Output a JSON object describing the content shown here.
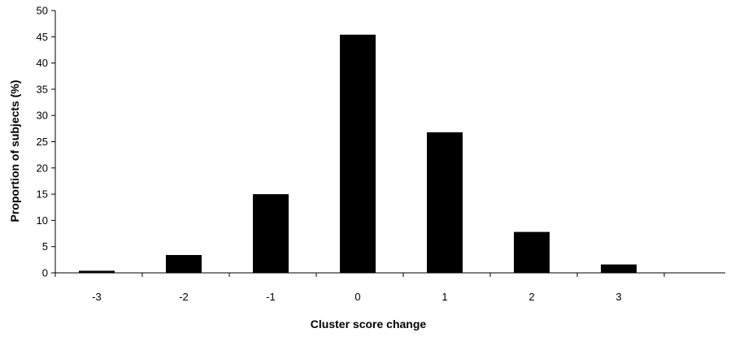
{
  "chart_data": {
    "type": "bar",
    "title": "",
    "xlabel": "Cluster score change",
    "ylabel": "Proportion of subjects (%)",
    "categories": [
      "-3",
      "-2",
      "-1",
      "0",
      "1",
      "2",
      "3"
    ],
    "values": [
      0.4,
      3.4,
      15.0,
      45.4,
      26.8,
      7.8,
      1.6
    ],
    "ylim": [
      0,
      50
    ],
    "yticks": [
      "0",
      "5",
      "10",
      "15",
      "20",
      "25",
      "30",
      "35",
      "40",
      "45",
      "50"
    ],
    "grid": false,
    "legend": "none",
    "bar_color": "#000000"
  }
}
